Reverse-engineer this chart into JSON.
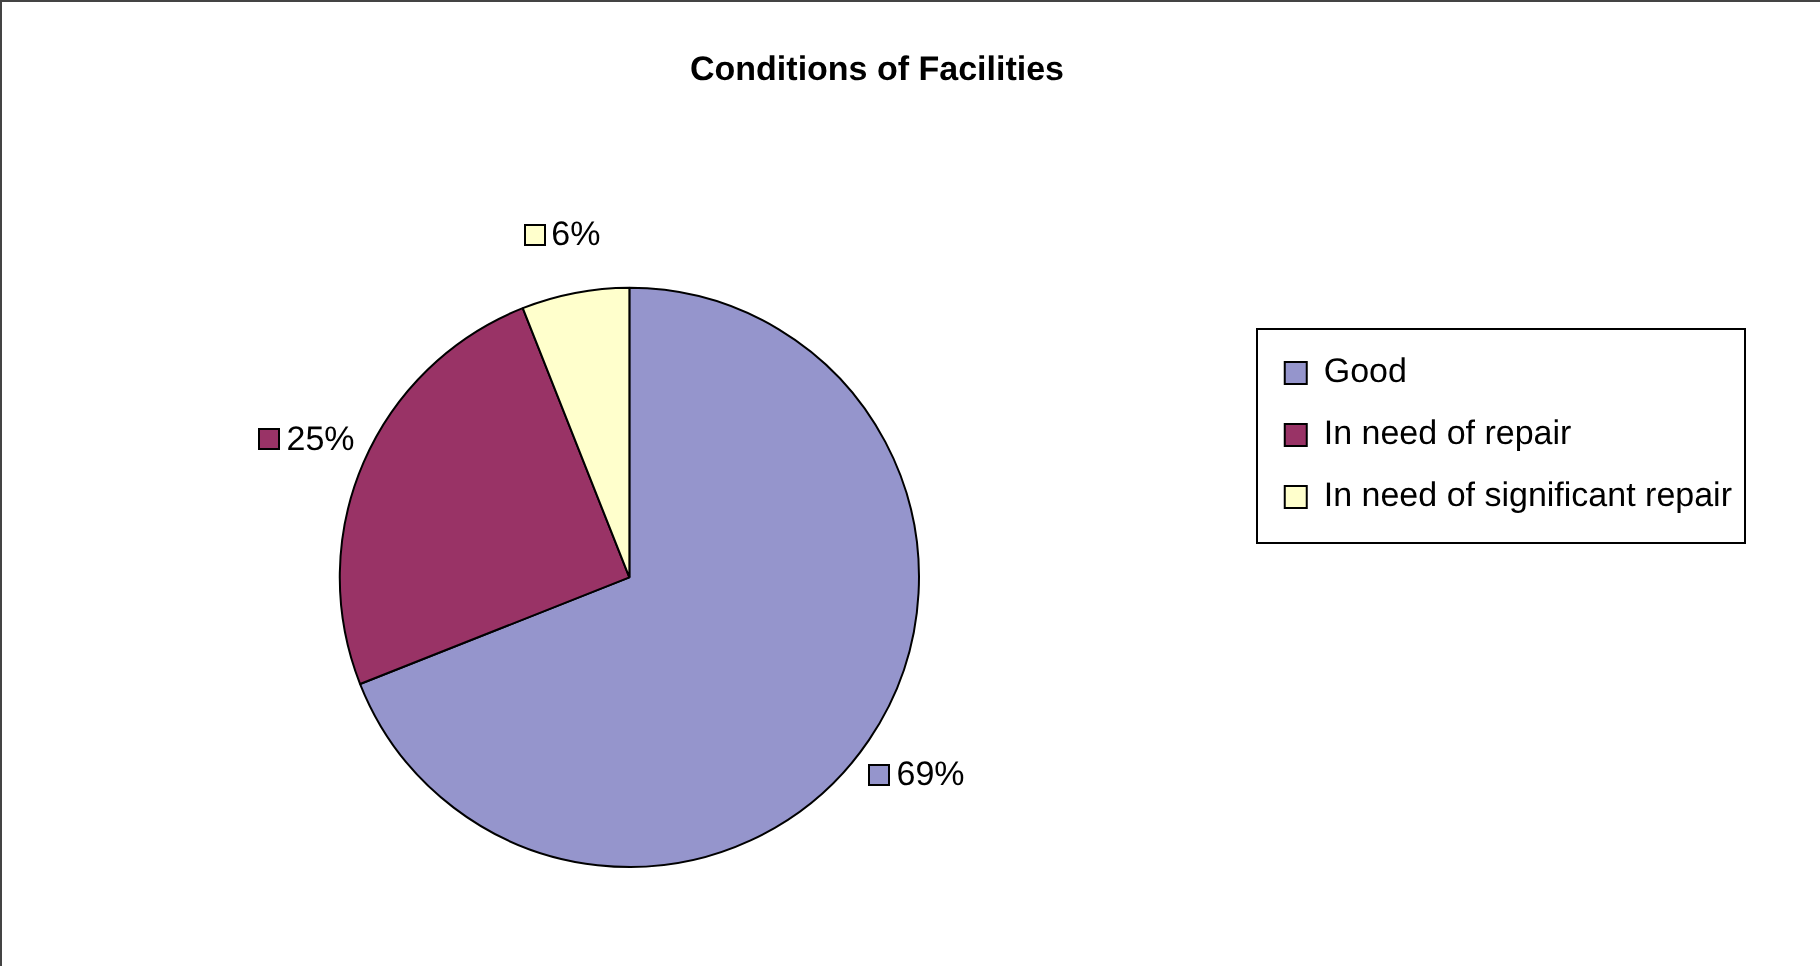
{
  "chart_data": {
    "type": "pie",
    "title": "Conditions of Facilities",
    "categories": [
      "Good",
      "In need of repair",
      "In need of significant repair"
    ],
    "values": [
      69,
      25,
      6
    ],
    "colors": [
      "#9595cc",
      "#993366",
      "#ffffcc"
    ],
    "value_labels": [
      "69%",
      "25%",
      "6%"
    ],
    "legend": "right"
  }
}
